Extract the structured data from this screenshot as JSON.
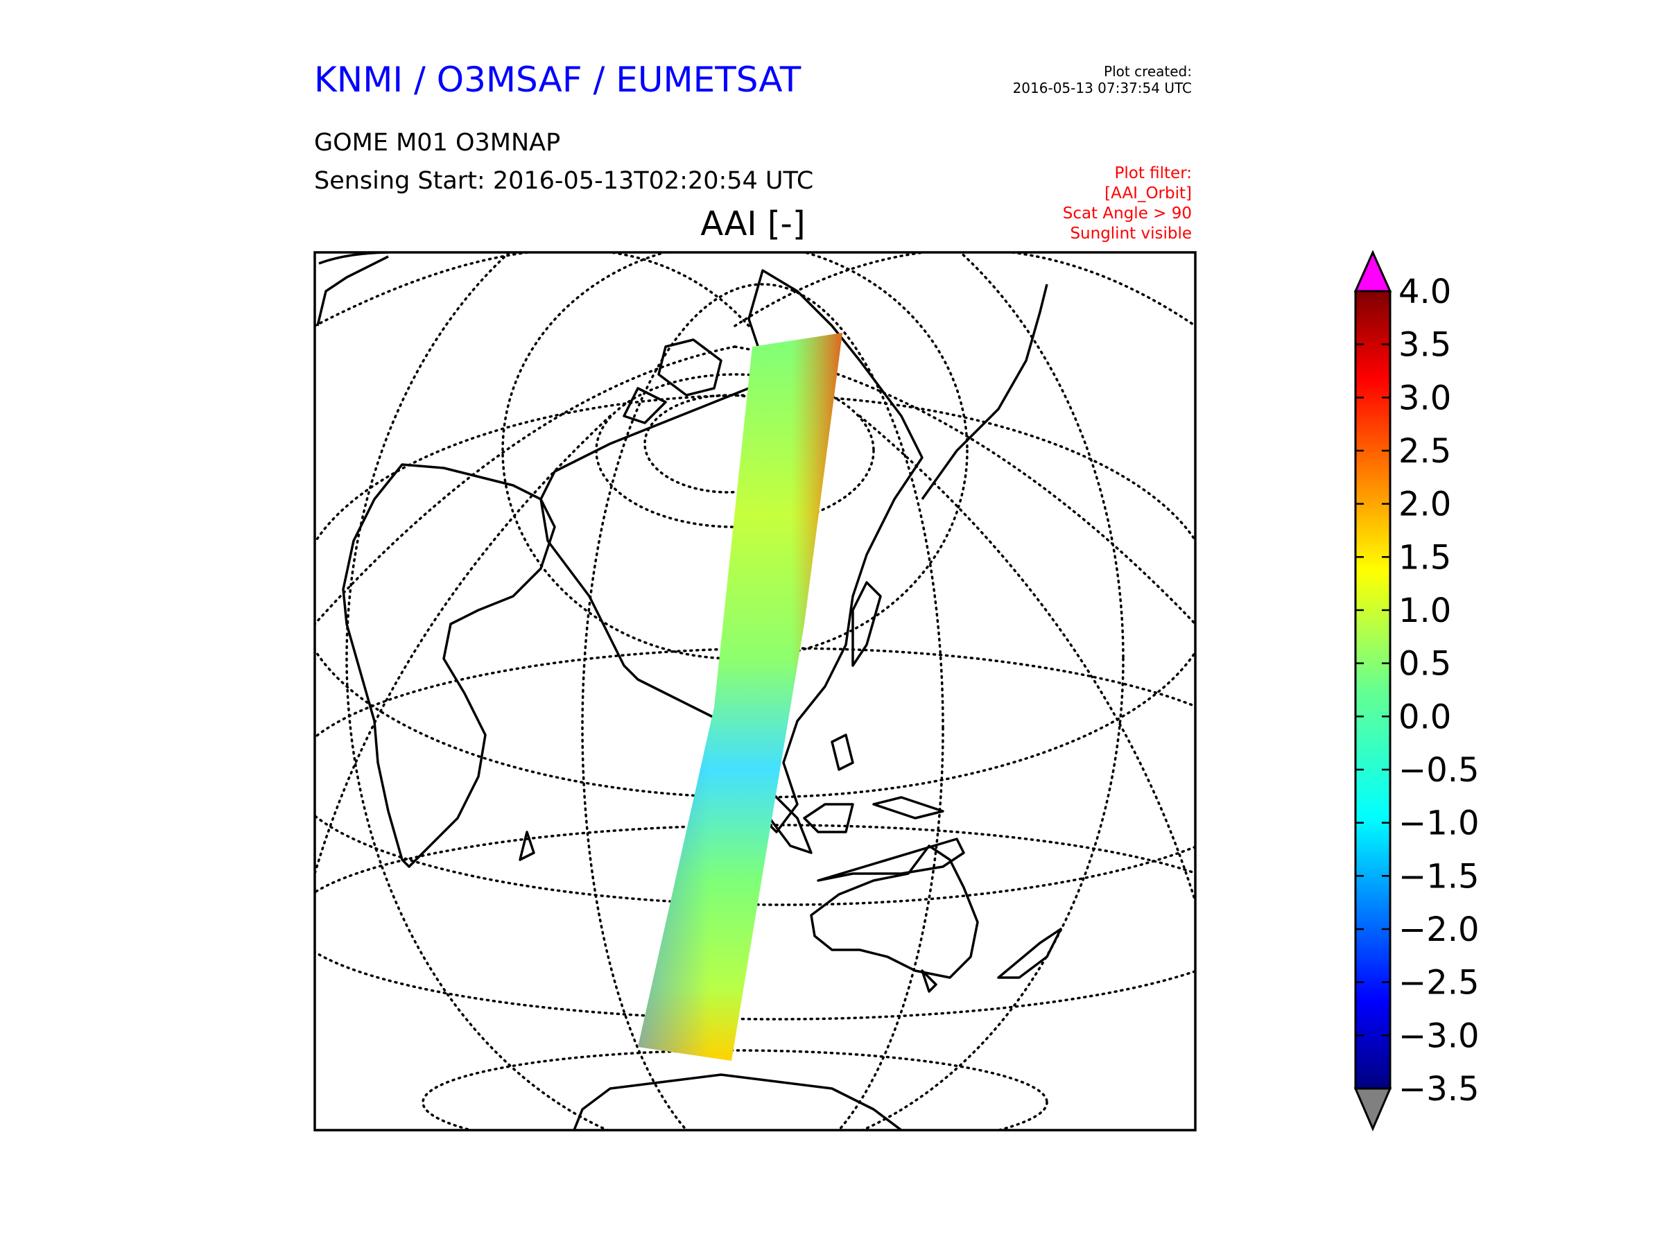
{
  "header": {
    "organization": "KNMI / O3MSAF / EUMETSAT",
    "plot_created_label": "Plot created:",
    "plot_created_time": "2016-05-13 07:37:54 UTC",
    "product": "GOME M01 O3MNAP",
    "sensing_start": "Sensing Start: 2016-05-13T02:20:54 UTC",
    "plot_filter_label": "Plot filter:",
    "plot_filter_lines": [
      "[AAI_Orbit]",
      "Scat Angle > 90",
      "Sunglint visible"
    ],
    "map_title": "AAI [-]"
  },
  "colors": {
    "organization_text": "#0000ff",
    "filter_text": "#ff0000",
    "over_range": "#ff00ff",
    "under_range": "#808080"
  },
  "colorbar": {
    "ticks": [
      4.0,
      3.5,
      3.0,
      2.5,
      2.0,
      1.5,
      1.0,
      0.5,
      0.0,
      -0.5,
      -1.0,
      -1.5,
      -2.0,
      -2.5,
      -3.0,
      -3.5
    ],
    "tick_labels": [
      "4.0",
      "3.5",
      "3.0",
      "2.5",
      "2.0",
      "1.5",
      "1.0",
      "0.5",
      "0.0",
      "−0.5",
      "−1.0",
      "−1.5",
      "−2.0",
      "−2.5",
      "−3.0",
      "−3.5"
    ],
    "min": -3.5,
    "max": 4.0,
    "colormap": "jet",
    "extend": "both"
  },
  "map": {
    "projection": "orthographic",
    "gridlines": "dotted",
    "coastlines": true,
    "data_layer": "single GOME orbit swath, Arctic to Antarctic"
  }
}
